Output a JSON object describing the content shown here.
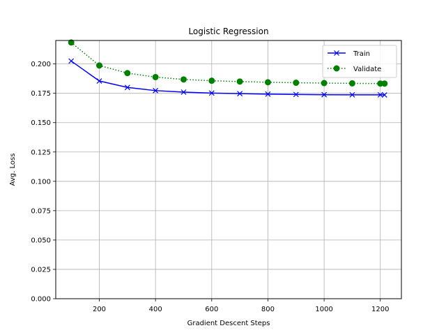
{
  "chart_data": {
    "type": "line",
    "title": "Logistic Regression",
    "xlabel": "Gradient Descent Steps",
    "ylabel": "Avg. Loss",
    "xlim": [
      45,
      1275
    ],
    "ylim": [
      0,
      0.22
    ],
    "xticks": [
      200,
      400,
      600,
      800,
      1000,
      1200
    ],
    "xtick_labels": [
      "200",
      "400",
      "600",
      "800",
      "1000",
      "1200"
    ],
    "yticks": [
      0,
      0.025,
      0.05,
      0.075,
      0.1,
      0.125,
      0.15,
      0.175,
      0.2
    ],
    "ytick_labels": [
      "0.000",
      "0.025",
      "0.050",
      "0.075",
      "0.100",
      "0.125",
      "0.150",
      "0.175",
      "0.200"
    ],
    "grid": true,
    "legend_position": "top-right",
    "x": [
      100,
      200,
      300,
      400,
      500,
      600,
      700,
      800,
      900,
      1000,
      1100,
      1200,
      1215
    ],
    "series": [
      {
        "name": "Train",
        "color": "#0000ff",
        "line_style": "solid",
        "marker": "x",
        "values": [
          0.2025,
          0.1855,
          0.18,
          0.1773,
          0.176,
          0.1752,
          0.1747,
          0.1743,
          0.174,
          0.1738,
          0.1737,
          0.1737,
          0.1736
        ]
      },
      {
        "name": "Validate",
        "color": "#008000",
        "line_style": "dotted",
        "marker": "circle",
        "values": [
          0.2183,
          0.1987,
          0.1922,
          0.1888,
          0.1868,
          0.1857,
          0.185,
          0.1844,
          0.184,
          0.1837,
          0.1835,
          0.1833,
          0.1833
        ]
      }
    ]
  }
}
